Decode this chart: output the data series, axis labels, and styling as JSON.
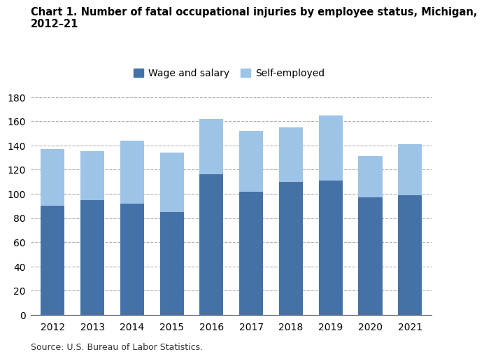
{
  "years": [
    2012,
    2013,
    2014,
    2015,
    2016,
    2017,
    2018,
    2019,
    2020,
    2021
  ],
  "wage_salary": [
    90,
    95,
    92,
    85,
    116,
    102,
    110,
    111,
    97,
    99
  ],
  "self_employed": [
    47,
    40,
    52,
    49,
    46,
    50,
    45,
    54,
    34,
    42
  ],
  "wage_salary_color": "#4472a8",
  "self_employed_color": "#9dc3e6",
  "title_line1": "Chart 1. Number of fatal occupational injuries by employee status, Michigan,",
  "title_line2": "2012–21",
  "legend_labels": [
    "Wage and salary",
    "Self-employed"
  ],
  "source_text": "Source: U.S. Bureau of Labor Statistics.",
  "ylim": [
    0,
    180
  ],
  "yticks": [
    0,
    20,
    40,
    60,
    80,
    100,
    120,
    140,
    160,
    180
  ],
  "background_color": "#ffffff",
  "grid_color": "#b0b0b0",
  "title_fontsize": 10.5,
  "tick_fontsize": 10,
  "legend_fontsize": 10,
  "source_fontsize": 9,
  "bar_width": 0.6
}
